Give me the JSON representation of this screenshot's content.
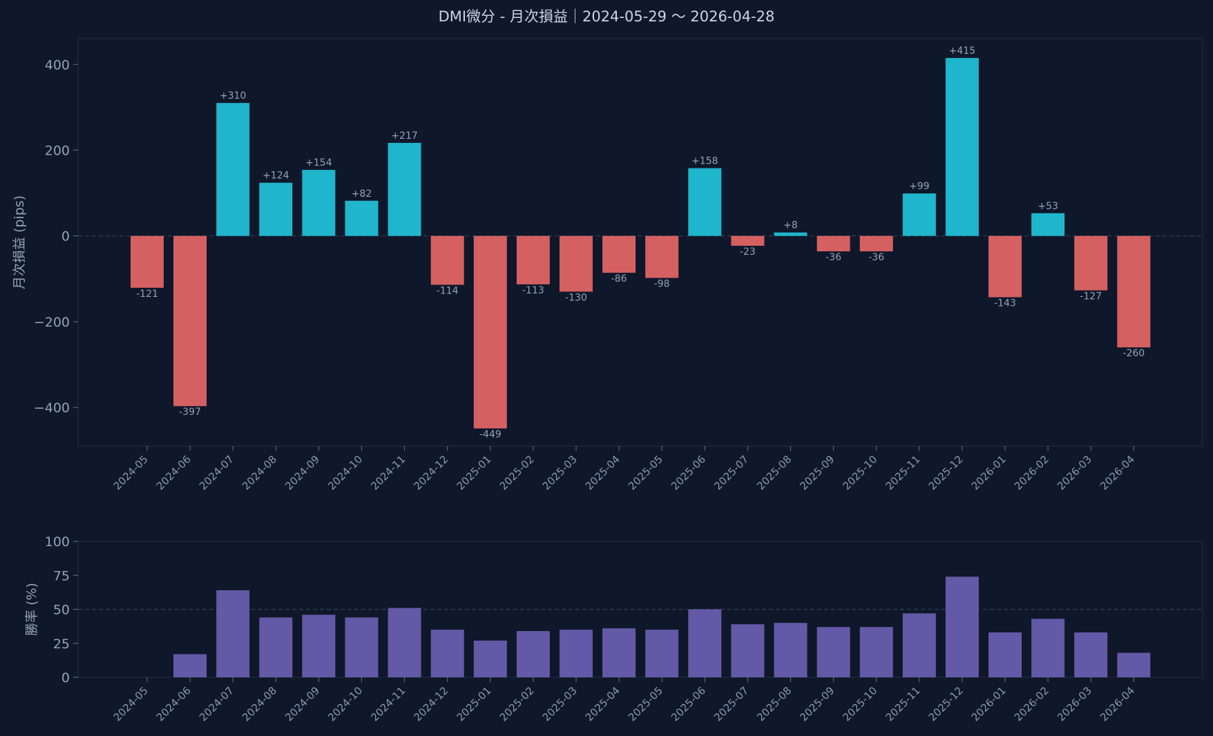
{
  "title": "DMI微分 - 月次損益｜2024-05-29 〜 2026-04-28",
  "colors": {
    "background": "#0f172a",
    "positive": "#1fb5cc",
    "negative": "#d46062",
    "winrate": "#6459a6",
    "grid": "#334155",
    "text": "#94a3b8"
  },
  "chart_data": [
    {
      "type": "bar",
      "title": "DMI微分 - 月次損益｜2024-05-29 〜 2026-04-28",
      "ylabel": "月次損益 (pips)",
      "ylim": [
        -490,
        460
      ],
      "yticks": [
        400,
        200,
        0,
        -200,
        -400
      ],
      "ytick_labels": [
        "400",
        "200",
        "0",
        "−200",
        "−400"
      ],
      "reference_line": 0,
      "categories": [
        "2024-05",
        "2024-06",
        "2024-07",
        "2024-08",
        "2024-09",
        "2024-10",
        "2024-11",
        "2024-12",
        "2025-01",
        "2025-02",
        "2025-03",
        "2025-04",
        "2025-05",
        "2025-06",
        "2025-07",
        "2025-08",
        "2025-09",
        "2025-10",
        "2025-11",
        "2025-12",
        "2026-01",
        "2026-02",
        "2026-03",
        "2026-04"
      ],
      "values": [
        -121,
        -397,
        310,
        124,
        154,
        82,
        217,
        -114,
        -449,
        -113,
        -130,
        -86,
        -98,
        158,
        -23,
        8,
        -36,
        -36,
        99,
        415,
        -143,
        53,
        -127,
        -260
      ],
      "data_labels": [
        "-121",
        "-397",
        "+310",
        "+124",
        "+154",
        "+82",
        "+217",
        "-114",
        "-449",
        "-113",
        "-130",
        "-86",
        "-98",
        "+158",
        "-23",
        "+8",
        "-36",
        "-36",
        "+99",
        "+415",
        "-143",
        "+53",
        "-127",
        "-260"
      ]
    },
    {
      "type": "bar",
      "ylabel": "勝率 (%)",
      "ylim": [
        0,
        100
      ],
      "yticks": [
        100,
        75,
        50,
        25,
        0
      ],
      "ytick_labels": [
        "100",
        "75",
        "50",
        "25",
        "0"
      ],
      "reference_line": 50,
      "categories": [
        "2024-05",
        "2024-06",
        "2024-07",
        "2024-08",
        "2024-09",
        "2024-10",
        "2024-11",
        "2024-12",
        "2025-01",
        "2025-02",
        "2025-03",
        "2025-04",
        "2025-05",
        "2025-06",
        "2025-07",
        "2025-08",
        "2025-09",
        "2025-10",
        "2025-11",
        "2025-12",
        "2026-01",
        "2026-02",
        "2026-03",
        "2026-04"
      ],
      "values": [
        0,
        17,
        64,
        44,
        46,
        44,
        51,
        35,
        27,
        34,
        35,
        36,
        35,
        50,
        39,
        40,
        37,
        37,
        47,
        74,
        33,
        43,
        33,
        18
      ]
    }
  ]
}
